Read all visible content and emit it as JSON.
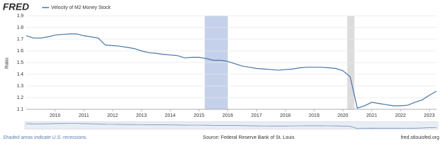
{
  "logo": "FRED",
  "chart_data": {
    "type": "line",
    "y_label": "Ratio",
    "x": [
      2009.0,
      2009.25,
      2009.5,
      2009.75,
      2010.0,
      2010.25,
      2010.5,
      2010.75,
      2011.0,
      2011.25,
      2011.5,
      2011.75,
      2012.0,
      2012.25,
      2012.5,
      2012.75,
      2013.0,
      2013.25,
      2013.5,
      2013.75,
      2014.0,
      2014.25,
      2014.5,
      2014.75,
      2015.0,
      2015.25,
      2015.5,
      2015.75,
      2016.0,
      2016.25,
      2016.5,
      2016.75,
      2017.0,
      2017.25,
      2017.5,
      2017.75,
      2018.0,
      2018.25,
      2018.5,
      2018.75,
      2019.0,
      2019.25,
      2019.5,
      2019.75,
      2020.0,
      2020.25,
      2020.5,
      2020.75,
      2021.0,
      2021.25,
      2021.5,
      2021.75,
      2022.0,
      2022.25,
      2022.5,
      2022.75,
      2023.0,
      2023.25
    ],
    "series": [
      {
        "name": "Velocity of M2 Money Stock",
        "color": "#4572a7",
        "values": [
          1.73,
          1.71,
          1.71,
          1.72,
          1.735,
          1.74,
          1.745,
          1.745,
          1.73,
          1.72,
          1.71,
          1.65,
          1.645,
          1.64,
          1.63,
          1.62,
          1.6,
          1.585,
          1.58,
          1.57,
          1.565,
          1.56,
          1.54,
          1.545,
          1.545,
          1.535,
          1.52,
          1.52,
          1.51,
          1.49,
          1.47,
          1.46,
          1.45,
          1.445,
          1.44,
          1.435,
          1.44,
          1.445,
          1.455,
          1.46,
          1.46,
          1.46,
          1.455,
          1.45,
          1.43,
          1.38,
          1.11,
          1.13,
          1.16,
          1.15,
          1.14,
          1.13,
          1.13,
          1.135,
          1.16,
          1.18,
          1.22,
          1.255
        ]
      }
    ],
    "xlim": [
      2009.0,
      2023.25
    ],
    "xticks": [
      2010,
      2011,
      2012,
      2013,
      2014,
      2015,
      2016,
      2017,
      2018,
      2019,
      2020,
      2021,
      2022,
      2023
    ],
    "ylim": [
      1.1,
      1.9
    ],
    "yticks": [
      1.1,
      1.2,
      1.3,
      1.4,
      1.5,
      1.6,
      1.7,
      1.8,
      1.9
    ],
    "grid": true,
    "highlight": [
      2015.2,
      2016.0
    ],
    "recessions": [
      [
        2020.15,
        2020.4
      ]
    ],
    "recession_note": "Shaded areas indicate U.S. recessions.",
    "source": "Source: Federal Reserve Bank of St. Louis",
    "site": "fred.stlouisfed.org"
  }
}
